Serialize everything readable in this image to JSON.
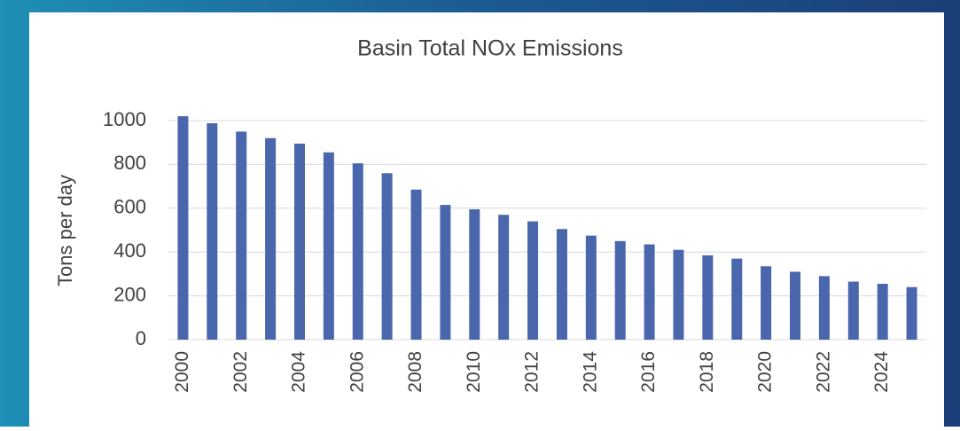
{
  "chart_data": {
    "type": "bar",
    "title": "Basin Total NOx Emissions",
    "y_label": "Tons per day",
    "categories": [
      "2000",
      null,
      "2002",
      null,
      "2004",
      null,
      "2006",
      null,
      "2008",
      null,
      "2010",
      null,
      "2012",
      null,
      "2014",
      null,
      "2016",
      null,
      "2018",
      null,
      "2020",
      null,
      "2022",
      null,
      "2024",
      null
    ],
    "values": [
      1020,
      988,
      950,
      920,
      895,
      855,
      805,
      760,
      685,
      615,
      595,
      570,
      540,
      505,
      475,
      450,
      435,
      410,
      385,
      370,
      335,
      310,
      290,
      265,
      255,
      240
    ],
    "color": "#4a66ac",
    "ylim": [
      0,
      1000
    ],
    "yticks": [
      0,
      200,
      400,
      600,
      800,
      1000
    ],
    "grid": true
  }
}
